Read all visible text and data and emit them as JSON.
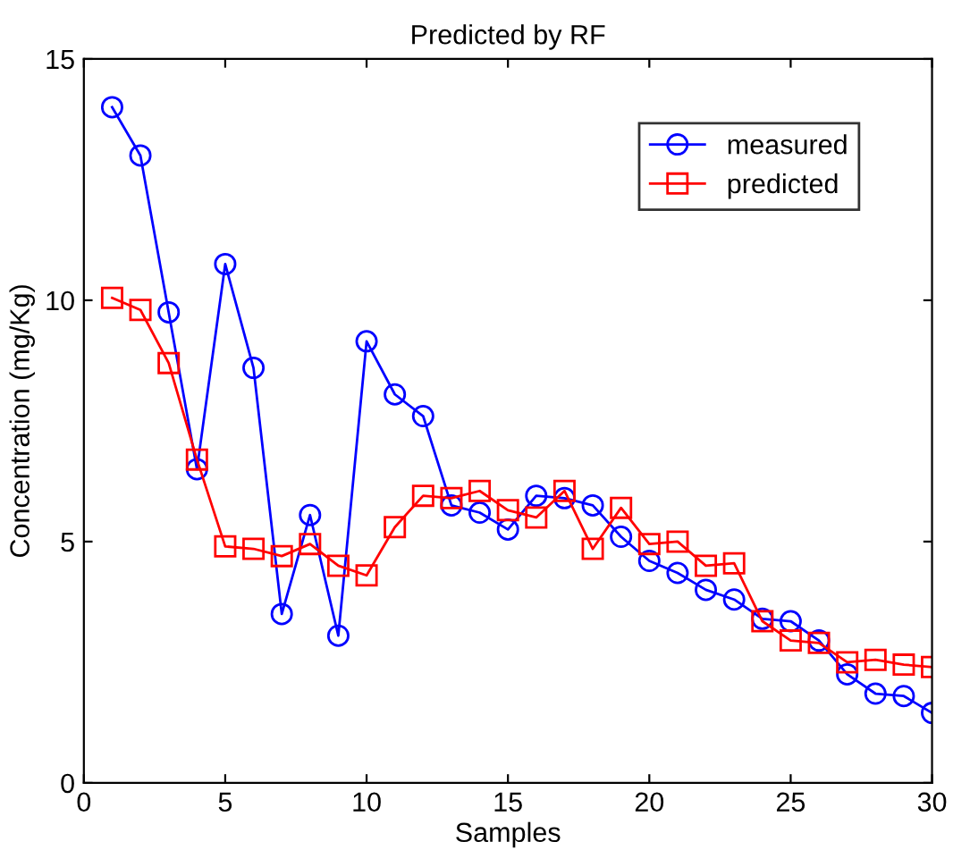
{
  "chart_data": {
    "type": "line",
    "title": "Predicted by RF",
    "xlabel": "Samples",
    "ylabel": "Concentration (mg/Kg)",
    "x": [
      1,
      2,
      3,
      4,
      5,
      6,
      7,
      8,
      9,
      10,
      11,
      12,
      13,
      14,
      15,
      16,
      17,
      18,
      19,
      20,
      21,
      22,
      23,
      24,
      25,
      26,
      27,
      28,
      29,
      30
    ],
    "series": [
      {
        "name": "measured",
        "color": "#0000ff",
        "marker": "circle",
        "values": [
          14.0,
          13.0,
          9.75,
          6.5,
          10.75,
          8.6,
          3.5,
          5.55,
          3.05,
          9.15,
          8.05,
          7.6,
          5.75,
          5.6,
          5.25,
          5.95,
          5.9,
          5.75,
          5.1,
          4.6,
          4.35,
          4.0,
          3.8,
          3.4,
          3.35,
          2.95,
          2.25,
          1.85,
          1.8,
          1.45
        ]
      },
      {
        "name": "predicted",
        "color": "#ff0000",
        "marker": "square",
        "values": [
          10.05,
          9.8,
          8.7,
          6.7,
          4.9,
          4.85,
          4.7,
          4.95,
          4.5,
          4.3,
          5.3,
          5.95,
          5.9,
          6.05,
          5.65,
          5.5,
          6.05,
          4.85,
          5.7,
          4.95,
          5.0,
          4.5,
          4.55,
          3.35,
          2.95,
          2.9,
          2.5,
          2.55,
          2.45,
          2.4
        ]
      }
    ],
    "xlim": [
      0,
      30
    ],
    "ylim": [
      0,
      15
    ],
    "xticks": [
      0,
      5,
      10,
      15,
      20,
      25,
      30
    ],
    "yticks": [
      0,
      5,
      10,
      15
    ],
    "grid": false,
    "legend": "top right",
    "line_style": "solid"
  }
}
